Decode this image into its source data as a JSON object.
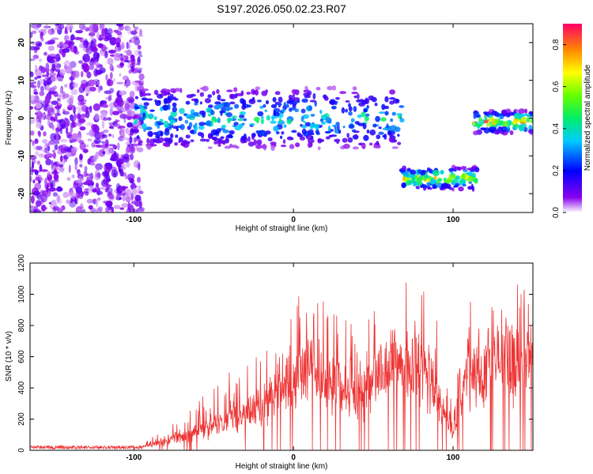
{
  "title": "S197.2026.050.02.23.R07",
  "chart_data": [
    {
      "type": "heatmap",
      "name": "spectrogram",
      "xlabel": "Height of straight line (km)",
      "ylabel": "Frequency (Hz)",
      "xlim": [
        -165,
        150
      ],
      "ylim": [
        -25,
        25
      ],
      "xticks": [
        -100,
        0,
        100
      ],
      "yticks": [
        -20,
        -10,
        0,
        10,
        20
      ],
      "colorbar": {
        "label": "Normalized spectral amplitude",
        "range": [
          0,
          0.9
        ],
        "ticks": [
          0.0,
          0.2,
          0.4,
          0.6,
          0.8
        ]
      },
      "noise_region": {
        "x_from": -165,
        "x_to": -95,
        "y_from": -25,
        "y_to": 25
      },
      "track_segments": [
        {
          "x_from": -100,
          "x_to": 68,
          "freq_hz": 0,
          "spread_hz": 8,
          "peak_amp": 0.45
        },
        {
          "x_from": 68,
          "x_to": 115,
          "freq_hz": -16,
          "spread_hz": 3,
          "peak_amp": 0.8
        },
        {
          "x_from": 113,
          "x_to": 150,
          "freq_hz": -1,
          "spread_hz": 3,
          "peak_amp": 0.85
        }
      ]
    },
    {
      "type": "line",
      "name": "snr",
      "xlabel": "Height of straight line (km)",
      "ylabel": "SNR (10 * v/v)",
      "xlim": [
        -165,
        150
      ],
      "ylim": [
        0,
        1200
      ],
      "xticks": [
        -100,
        0,
        100
      ],
      "yticks": [
        0,
        200,
        400,
        600,
        800,
        1000,
        1200
      ],
      "color": "#ee3333",
      "envelope": [
        {
          "x": -165,
          "base": 20,
          "peak": 25
        },
        {
          "x": -95,
          "base": 20,
          "peak": 30
        },
        {
          "x": -85,
          "base": 30,
          "peak": 120
        },
        {
          "x": -70,
          "base": 60,
          "peak": 240
        },
        {
          "x": -50,
          "base": 100,
          "peak": 400
        },
        {
          "x": -35,
          "base": 150,
          "peak": 560
        },
        {
          "x": -20,
          "base": 220,
          "peak": 620
        },
        {
          "x": -5,
          "base": 300,
          "peak": 860
        },
        {
          "x": 10,
          "base": 400,
          "peak": 1100
        },
        {
          "x": 25,
          "base": 300,
          "peak": 900
        },
        {
          "x": 40,
          "base": 220,
          "peak": 800
        },
        {
          "x": 55,
          "base": 400,
          "peak": 1000
        },
        {
          "x": 70,
          "base": 450,
          "peak": 1100
        },
        {
          "x": 85,
          "base": 350,
          "peak": 1150
        },
        {
          "x": 95,
          "base": 150,
          "peak": 500
        },
        {
          "x": 100,
          "base": 80,
          "peak": 300
        },
        {
          "x": 108,
          "base": 350,
          "peak": 950
        },
        {
          "x": 125,
          "base": 450,
          "peak": 1000
        },
        {
          "x": 140,
          "base": 400,
          "peak": 1150
        },
        {
          "x": 150,
          "base": 480,
          "peak": 900
        }
      ]
    }
  ]
}
